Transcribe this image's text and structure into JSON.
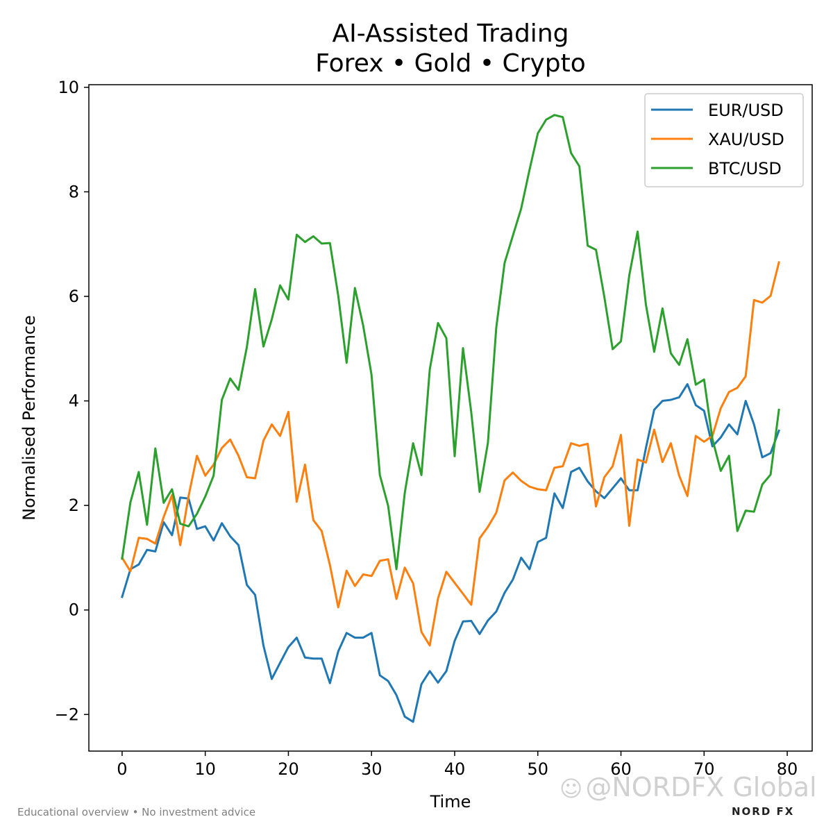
{
  "chart_data": {
    "type": "line",
    "title": "AI-Assisted Trading",
    "subtitle": "Forex • Gold • Crypto",
    "xlabel": "Time",
    "ylabel": "Normalised Performance",
    "xlim": [
      -4,
      83
    ],
    "ylim": [
      -2.7,
      10.05
    ],
    "xticks": [
      0,
      10,
      20,
      30,
      40,
      50,
      60,
      70,
      80
    ],
    "yticks": [
      -2,
      0,
      2,
      4,
      6,
      8,
      10
    ],
    "ytick_labels": [
      "−2",
      "0",
      "2",
      "4",
      "6",
      "8",
      "10"
    ],
    "grid": false,
    "legend_position": "top-right",
    "series": [
      {
        "name": "EUR/USD",
        "color": "#1f77b4",
        "values": [
          0.25,
          0.78,
          0.87,
          1.15,
          1.12,
          1.68,
          1.43,
          2.15,
          2.13,
          1.55,
          1.6,
          1.33,
          1.66,
          1.41,
          1.24,
          0.48,
          0.29,
          -0.68,
          -1.32,
          -1.01,
          -0.71,
          -0.53,
          -0.91,
          -0.93,
          -0.93,
          -1.4,
          -0.79,
          -0.44,
          -0.53,
          -0.53,
          -0.44,
          -1.25,
          -1.36,
          -1.63,
          -2.04,
          -2.14,
          -1.42,
          -1.17,
          -1.39,
          -1.17,
          -0.59,
          -0.22,
          -0.21,
          -0.46,
          -0.2,
          -0.03,
          0.33,
          0.58,
          1.0,
          0.78,
          1.3,
          1.38,
          2.23,
          1.95,
          2.64,
          2.72,
          2.46,
          2.27,
          2.14,
          2.33,
          2.52,
          2.29,
          2.29,
          3.1,
          3.83,
          4.0,
          4.02,
          4.07,
          4.32,
          3.92,
          3.81,
          3.13,
          3.3,
          3.55,
          3.36,
          4.0,
          3.55,
          2.92,
          3.0,
          3.43
        ]
      },
      {
        "name": "XAU/USD",
        "color": "#ff7f0e",
        "values": [
          1.0,
          0.74,
          1.38,
          1.36,
          1.27,
          1.78,
          2.2,
          1.24,
          2.18,
          2.95,
          2.57,
          2.78,
          3.1,
          3.26,
          2.95,
          2.54,
          2.52,
          3.24,
          3.55,
          3.33,
          3.79,
          2.07,
          2.78,
          1.72,
          1.51,
          0.86,
          0.05,
          0.75,
          0.46,
          0.68,
          0.65,
          0.94,
          0.97,
          0.21,
          0.81,
          0.51,
          -0.42,
          -0.68,
          0.22,
          0.73,
          0.52,
          0.31,
          0.1,
          1.37,
          1.59,
          1.86,
          2.48,
          2.63,
          2.47,
          2.36,
          2.31,
          2.29,
          2.72,
          2.75,
          3.19,
          3.14,
          3.18,
          1.98,
          2.54,
          2.75,
          3.35,
          1.61,
          2.88,
          2.82,
          3.45,
          2.83,
          3.19,
          2.57,
          2.18,
          3.33,
          3.22,
          3.33,
          3.86,
          4.17,
          4.25,
          4.47,
          5.93,
          5.88,
          6.01,
          6.65
        ]
      },
      {
        "name": "BTC/USD",
        "color": "#2ca02c",
        "values": [
          0.98,
          2.06,
          2.64,
          1.63,
          3.09,
          2.05,
          2.31,
          1.65,
          1.6,
          1.84,
          2.17,
          2.57,
          4.02,
          4.43,
          4.21,
          5.03,
          6.14,
          5.04,
          5.56,
          6.21,
          5.94,
          7.18,
          7.04,
          7.15,
          7.01,
          7.02,
          6.01,
          4.73,
          6.16,
          5.44,
          4.5,
          2.58,
          1.99,
          0.78,
          2.24,
          3.19,
          2.58,
          4.6,
          5.49,
          5.2,
          2.94,
          5.01,
          3.78,
          2.26,
          3.2,
          5.4,
          6.64,
          7.16,
          7.68,
          8.42,
          9.12,
          9.38,
          9.47,
          9.43,
          8.74,
          8.49,
          6.97,
          6.89,
          5.99,
          4.99,
          5.14,
          6.4,
          7.24,
          5.84,
          4.94,
          5.77,
          4.91,
          4.69,
          5.18,
          4.31,
          4.41,
          3.27,
          2.66,
          2.95,
          1.51,
          1.9,
          1.88,
          2.4,
          2.59,
          3.83
        ]
      }
    ]
  },
  "footer": {
    "disclaimer": "Educational overview • No investment advice",
    "watermark_icon": "☺",
    "watermark_text": "@NORDFX Global",
    "logo_text": "NORD FX"
  }
}
